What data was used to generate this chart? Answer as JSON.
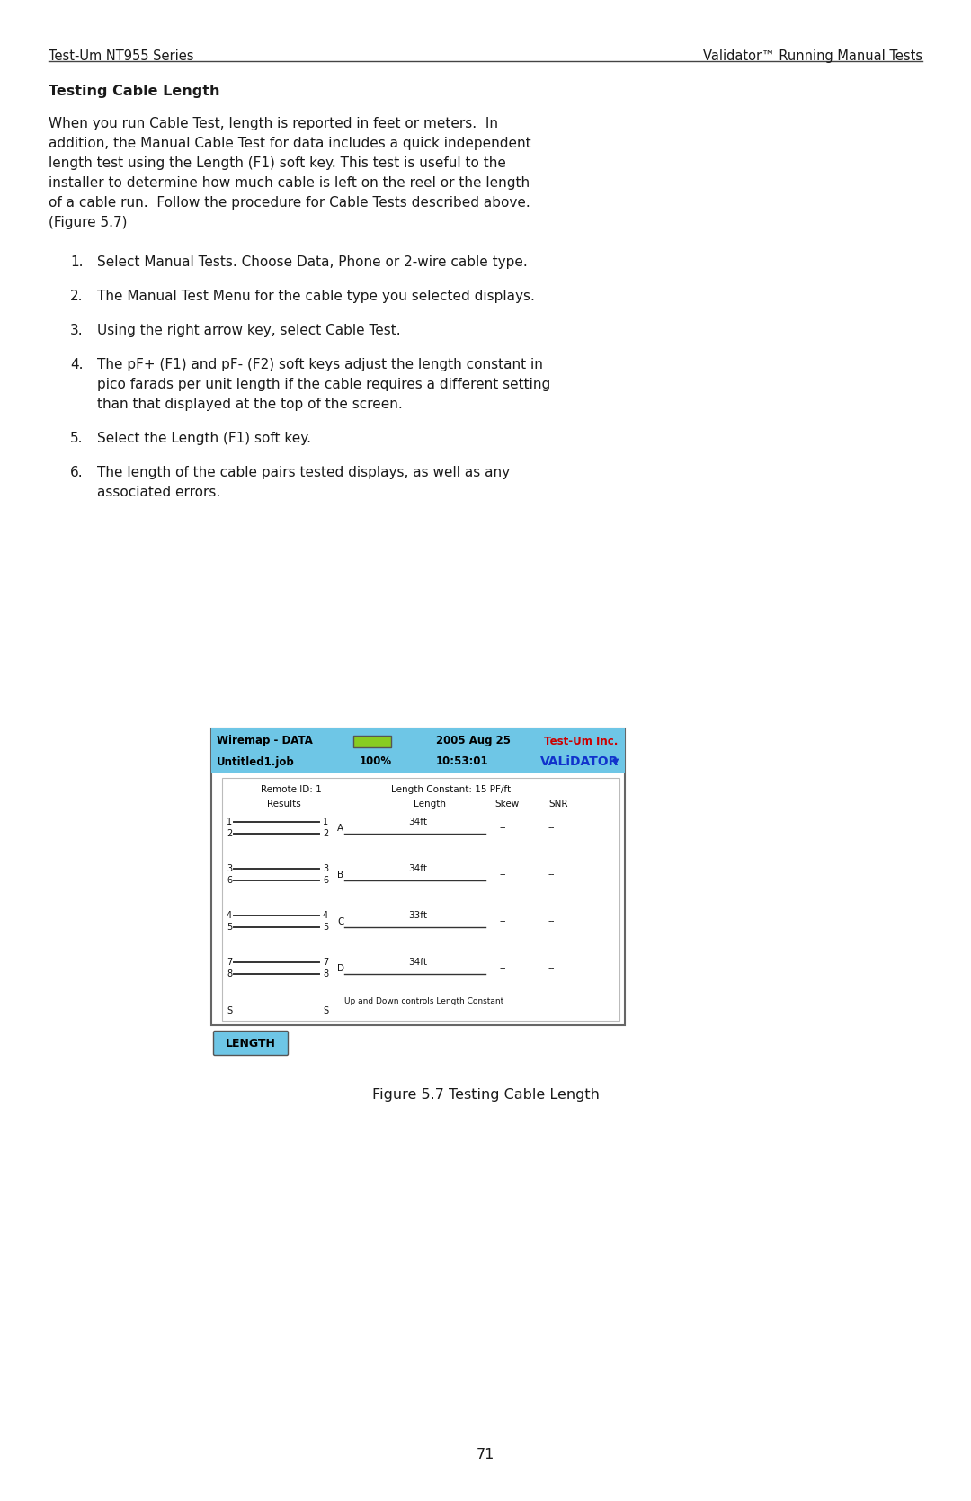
{
  "page_bg": "#ffffff",
  "header_left": "Test-Um NT955 Series",
  "header_right": "Validator™ Running Manual Tests",
  "section_title": "Testing Cable Length",
  "body_text_lines": [
    "When you run Cable Test, length is reported in feet or meters.  In",
    "addition, the Manual Cable Test for data includes a quick independent",
    "length test using the Length (F1) soft key. This test is useful to the",
    "installer to determine how much cable is left on the reel or the length",
    "of a cable run.  Follow the procedure for Cable Tests described above.",
    "(Figure 5.7)"
  ],
  "steps": [
    [
      "Select Manual Tests. Choose Data, Phone or 2-wire cable type."
    ],
    [
      "The Manual Test Menu for the cable type you selected displays."
    ],
    [
      "Using the right arrow key, select Cable Test."
    ],
    [
      "The pF+ (F1) and pF- (F2) soft keys adjust the length constant in",
      "pico farads per unit length if the cable requires a different setting",
      "than that displayed at the top of the screen."
    ],
    [
      "Select the Length (F1) soft key."
    ],
    [
      "The length of the cable pairs tested displays, as well as any",
      "associated errors."
    ]
  ],
  "figure_caption": "Figure 5.7 Testing Cable Length",
  "page_number": "71",
  "screen_header_bg": "#6ec6e6",
  "screen_title_left": "Wiremap - DATA",
  "screen_battery_color": "#88cc22",
  "screen_date": "2005 Aug 25",
  "screen_job": "Untitled1.job",
  "screen_percent": "100%",
  "screen_time": "10:53:01",
  "screen_testum": "Test-Um Inc.",
  "screen_testum_color": "#cc0000",
  "screen_validator": "VALiDATOR",
  "screen_validator_triangle": "▼",
  "screen_validator_color": "#1133cc",
  "screen_body_bg": "#ffffff",
  "screen_remote_id": "Remote ID: 1",
  "screen_length_constant": "Length Constant: 15 PF/ft",
  "screen_col_results": "Results",
  "screen_col_length": "Length",
  "screen_col_skew": "Skew",
  "screen_col_snr": "SNR",
  "wire_pairs": [
    {
      "w1": "1",
      "w2": "2",
      "label": "A",
      "length": "34ft"
    },
    {
      "w1": "3",
      "w2": "6",
      "label": "B",
      "length": "34ft"
    },
    {
      "w1": "4",
      "w2": "5",
      "label": "C",
      "length": "33ft"
    },
    {
      "w1": "7",
      "w2": "8",
      "label": "D",
      "length": "34ft"
    }
  ],
  "screen_shield": "S",
  "screen_updown": "Up and Down controls Length Constant",
  "screen_btn_bg": "#6ec6e6",
  "screen_btn_text": "LENGTH",
  "text_color": "#1a1a1a",
  "header_line_color": "#444444",
  "font": "DejaVu Sans"
}
